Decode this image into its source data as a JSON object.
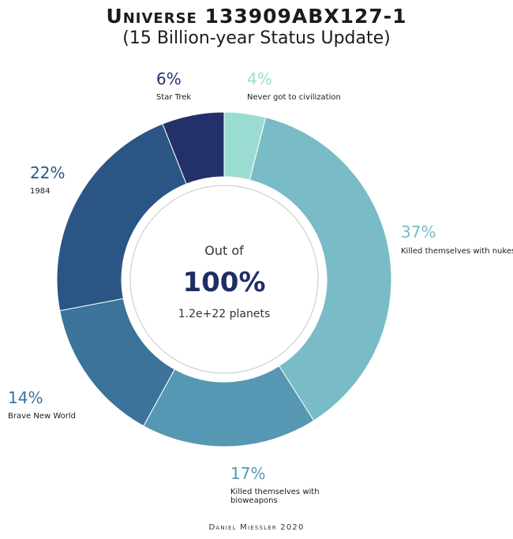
{
  "title": "Universe 133909ABX127-1",
  "subtitle": "(15 Billion-year Status Update)",
  "footer": "Daniel Miessler 2020",
  "center": {
    "line1": "Out of",
    "line2": "100%",
    "line3": "1.2e+22 planets"
  },
  "chart_data": {
    "type": "pie",
    "donut": true,
    "slices": [
      {
        "label": "Never got to civilization",
        "value": 4,
        "pct_label": "4%",
        "color": "#9bdcd2"
      },
      {
        "label": "Killed themselves with nukes",
        "value": 37,
        "pct_label": "37%",
        "color": "#79bbc6"
      },
      {
        "label": "Killed themselves with bioweapons",
        "value": 17,
        "pct_label": "17%",
        "color": "#5697b3"
      },
      {
        "label": "Brave New World",
        "value": 14,
        "pct_label": "14%",
        "color": "#3b739a"
      },
      {
        "label": "1984",
        "value": 22,
        "pct_label": "22%",
        "color": "#2b5585"
      },
      {
        "label": "Star Trek",
        "value": 6,
        "pct_label": "6%",
        "color": "#23306a"
      }
    ]
  }
}
